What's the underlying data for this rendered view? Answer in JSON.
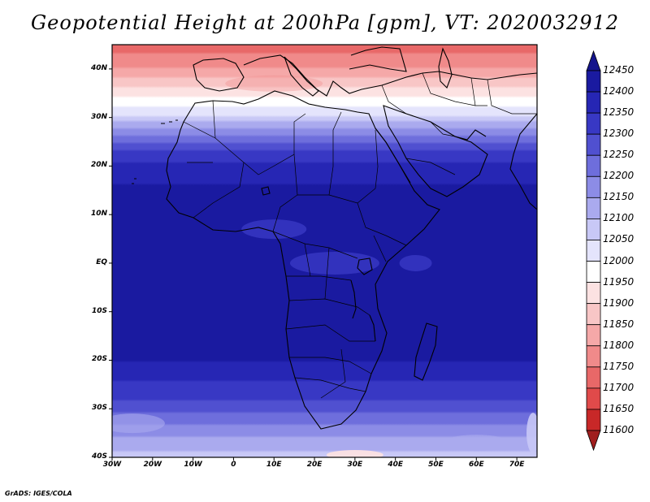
{
  "chart_data": {
    "type": "map-filled-contour",
    "title": "Geopotential Height at 200hPa [gpm], VT: 2020032912",
    "variable": "Geopotential Height",
    "level": "200hPa",
    "units": "gpm",
    "valid_time": "2020032912",
    "region": "Africa",
    "lon_range": [
      -30,
      75
    ],
    "lat_range": [
      -40,
      45
    ],
    "lat_ticks": [
      "40N",
      "30N",
      "20N",
      "10N",
      "EQ",
      "10S",
      "20S",
      "30S",
      "40S"
    ],
    "lon_ticks": [
      "30W",
      "20W",
      "10W",
      "0",
      "10E",
      "20E",
      "30E",
      "40E",
      "50E",
      "60E",
      "70E"
    ],
    "colorbar_levels": [
      11600,
      11650,
      11700,
      11750,
      11800,
      11850,
      11900,
      11950,
      12000,
      12050,
      12100,
      12150,
      12200,
      12250,
      12300,
      12350,
      12400,
      12450
    ],
    "colorbar_colors": [
      "#a01e1e",
      "#c82828",
      "#e04a4a",
      "#e86868",
      "#f08a8a",
      "#f5a8a8",
      "#f8c6c6",
      "#fce2e2",
      "#ffffff",
      "#e4e4fc",
      "#c8c8f6",
      "#aaaaee",
      "#8c8ce6",
      "#6e6edc",
      "#5050d0",
      "#3838c4",
      "#2626b4",
      "#1a1aa0",
      "#14148c"
    ],
    "lat_profile": [
      {
        "lat": 45,
        "value": 11720
      },
      {
        "lat": 40,
        "value": 11800
      },
      {
        "lat": 35,
        "value": 11930
      },
      {
        "lat": 30,
        "value": 12060
      },
      {
        "lat": 27,
        "value": 12180
      },
      {
        "lat": 24,
        "value": 12280
      },
      {
        "lat": 20,
        "value": 12370
      },
      {
        "lat": 14,
        "value": 12420
      },
      {
        "lat": 5,
        "value": 12440
      },
      {
        "lat": 0,
        "value": 12440
      },
      {
        "lat": -10,
        "value": 12440
      },
      {
        "lat": -18,
        "value": 12420
      },
      {
        "lat": -23,
        "value": 12370
      },
      {
        "lat": -28,
        "value": 12300
      },
      {
        "lat": -32,
        "value": 12230
      },
      {
        "lat": -36,
        "value": 12140
      },
      {
        "lat": -40,
        "value": 12080
      }
    ]
  },
  "footer": {
    "credit": "GrADS: IGES/COLA"
  }
}
